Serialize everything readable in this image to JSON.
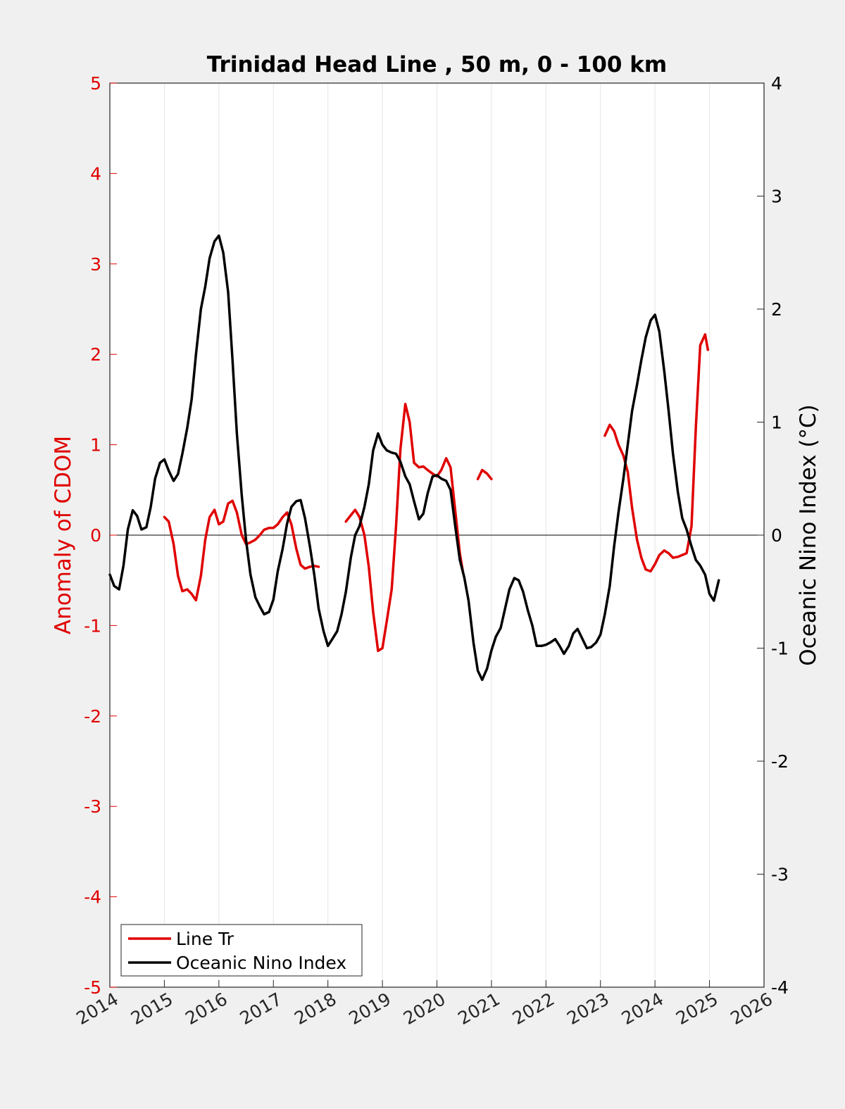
{
  "chart_data": {
    "type": "line",
    "title": "Trinidad Head Line , 50 m, 0 - 100 km",
    "xlabel": "",
    "ylabel": "Anomaly of CDOM",
    "y2label": "Oceanic Nino Index (°C)",
    "xlim": [
      2014,
      2026
    ],
    "ylim": [
      -5,
      5
    ],
    "y2lim": [
      -4,
      4
    ],
    "x_ticks": [
      "2014",
      "2015",
      "2016",
      "2017",
      "2018",
      "2019",
      "2020",
      "2021",
      "2022",
      "2023",
      "2024",
      "2025",
      "2026"
    ],
    "y_ticks": [
      "5",
      "4",
      "3",
      "2",
      "1",
      "0",
      "-1",
      "-2",
      "-3",
      "-4",
      "-5"
    ],
    "y2_ticks": [
      "4",
      "3",
      "2",
      "1",
      "0",
      "-1",
      "-2",
      "-3",
      "-4"
    ],
    "grid": "vertical",
    "legend_position": "bottom-left",
    "colors": {
      "cdom": "#e00000",
      "oni": "#000000",
      "background": "#f0f0f0",
      "plot": "#ffffff"
    },
    "series": [
      {
        "name": "Line Tr",
        "axis": "left",
        "color": "#e00000",
        "segments": [
          [
            [
              2015.0,
              0.2
            ],
            [
              2015.08,
              0.15
            ],
            [
              2015.17,
              -0.1
            ],
            [
              2015.25,
              -0.45
            ],
            [
              2015.33,
              -0.62
            ],
            [
              2015.42,
              -0.6
            ],
            [
              2015.5,
              -0.65
            ],
            [
              2015.58,
              -0.72
            ],
            [
              2015.67,
              -0.45
            ],
            [
              2015.75,
              -0.05
            ],
            [
              2015.83,
              0.2
            ],
            [
              2015.92,
              0.28
            ],
            [
              2016.0,
              0.12
            ],
            [
              2016.08,
              0.15
            ],
            [
              2016.17,
              0.35
            ],
            [
              2016.25,
              0.38
            ],
            [
              2016.33,
              0.25
            ],
            [
              2016.42,
              0.0
            ],
            [
              2016.5,
              -0.1
            ],
            [
              2016.58,
              -0.08
            ],
            [
              2016.67,
              -0.05
            ],
            [
              2016.75,
              0.0
            ],
            [
              2016.83,
              0.06
            ],
            [
              2016.92,
              0.08
            ],
            [
              2017.0,
              0.08
            ],
            [
              2017.08,
              0.12
            ],
            [
              2017.17,
              0.2
            ],
            [
              2017.25,
              0.25
            ],
            [
              2017.33,
              0.12
            ],
            [
              2017.42,
              -0.15
            ],
            [
              2017.5,
              -0.33
            ],
            [
              2017.58,
              -0.37
            ],
            [
              2017.67,
              -0.35
            ],
            [
              2017.75,
              -0.34
            ],
            [
              2017.83,
              -0.35
            ]
          ],
          [
            [
              2018.33,
              0.15
            ],
            [
              2018.42,
              0.22
            ],
            [
              2018.5,
              0.28
            ],
            [
              2018.58,
              0.2
            ],
            [
              2018.67,
              0.0
            ],
            [
              2018.75,
              -0.35
            ],
            [
              2018.83,
              -0.85
            ],
            [
              2018.92,
              -1.28
            ],
            [
              2019.0,
              -1.25
            ],
            [
              2019.08,
              -0.95
            ],
            [
              2019.17,
              -0.6
            ],
            [
              2019.25,
              0.1
            ],
            [
              2019.33,
              0.95
            ],
            [
              2019.42,
              1.45
            ],
            [
              2019.5,
              1.25
            ],
            [
              2019.58,
              0.8
            ],
            [
              2019.67,
              0.75
            ],
            [
              2019.75,
              0.76
            ],
            [
              2019.83,
              0.72
            ],
            [
              2019.92,
              0.68
            ],
            [
              2020.0,
              0.65
            ],
            [
              2020.08,
              0.72
            ],
            [
              2020.17,
              0.85
            ],
            [
              2020.25,
              0.75
            ],
            [
              2020.33,
              0.3
            ],
            [
              2020.42,
              -0.2
            ],
            [
              2020.48,
              -0.42
            ]
          ],
          [
            [
              2020.75,
              0.62
            ],
            [
              2020.83,
              0.72
            ],
            [
              2020.92,
              0.68
            ],
            [
              2021.0,
              0.62
            ]
          ],
          [
            [
              2023.08,
              1.1
            ],
            [
              2023.17,
              1.22
            ],
            [
              2023.25,
              1.15
            ],
            [
              2023.33,
              1.0
            ],
            [
              2023.42,
              0.88
            ],
            [
              2023.5,
              0.7
            ],
            [
              2023.58,
              0.3
            ],
            [
              2023.67,
              -0.05
            ],
            [
              2023.75,
              -0.25
            ],
            [
              2023.83,
              -0.38
            ],
            [
              2023.92,
              -0.4
            ],
            [
              2024.0,
              -0.32
            ],
            [
              2024.08,
              -0.22
            ],
            [
              2024.17,
              -0.17
            ],
            [
              2024.25,
              -0.2
            ],
            [
              2024.33,
              -0.25
            ],
            [
              2024.42,
              -0.24
            ],
            [
              2024.5,
              -0.22
            ],
            [
              2024.58,
              -0.2
            ],
            [
              2024.67,
              0.1
            ],
            [
              2024.75,
              1.2
            ],
            [
              2024.83,
              2.1
            ],
            [
              2024.92,
              2.22
            ],
            [
              2024.97,
              2.05
            ]
          ]
        ]
      },
      {
        "name": "Oceanic Nino Index",
        "axis": "right",
        "color": "#000000",
        "segments": [
          [
            [
              2014.0,
              -0.35
            ],
            [
              2014.08,
              -0.45
            ],
            [
              2014.17,
              -0.48
            ],
            [
              2014.25,
              -0.27
            ],
            [
              2014.33,
              0.05
            ],
            [
              2014.42,
              0.22
            ],
            [
              2014.5,
              0.17
            ],
            [
              2014.58,
              0.05
            ],
            [
              2014.67,
              0.07
            ],
            [
              2014.75,
              0.25
            ],
            [
              2014.83,
              0.5
            ],
            [
              2014.92,
              0.64
            ],
            [
              2015.0,
              0.67
            ],
            [
              2015.08,
              0.57
            ],
            [
              2015.17,
              0.48
            ],
            [
              2015.25,
              0.54
            ],
            [
              2015.33,
              0.72
            ],
            [
              2015.42,
              0.95
            ],
            [
              2015.5,
              1.2
            ],
            [
              2015.58,
              1.6
            ],
            [
              2015.67,
              2.0
            ],
            [
              2015.75,
              2.2
            ],
            [
              2015.83,
              2.45
            ],
            [
              2015.92,
              2.6
            ],
            [
              2016.0,
              2.65
            ],
            [
              2016.08,
              2.5
            ],
            [
              2016.17,
              2.15
            ],
            [
              2016.25,
              1.55
            ],
            [
              2016.33,
              0.9
            ],
            [
              2016.42,
              0.35
            ],
            [
              2016.5,
              -0.05
            ],
            [
              2016.58,
              -0.35
            ],
            [
              2016.67,
              -0.55
            ],
            [
              2016.75,
              -0.63
            ],
            [
              2016.83,
              -0.7
            ],
            [
              2016.92,
              -0.68
            ],
            [
              2017.0,
              -0.57
            ],
            [
              2017.08,
              -0.32
            ],
            [
              2017.17,
              -0.12
            ],
            [
              2017.25,
              0.1
            ],
            [
              2017.33,
              0.25
            ],
            [
              2017.42,
              0.3
            ],
            [
              2017.5,
              0.31
            ],
            [
              2017.58,
              0.15
            ],
            [
              2017.67,
              -0.1
            ],
            [
              2017.75,
              -0.35
            ],
            [
              2017.83,
              -0.65
            ],
            [
              2017.92,
              -0.85
            ],
            [
              2018.0,
              -0.98
            ],
            [
              2018.08,
              -0.92
            ],
            [
              2018.17,
              -0.85
            ],
            [
              2018.25,
              -0.7
            ],
            [
              2018.33,
              -0.5
            ],
            [
              2018.42,
              -0.2
            ],
            [
              2018.5,
              0.0
            ],
            [
              2018.58,
              0.08
            ],
            [
              2018.67,
              0.25
            ],
            [
              2018.75,
              0.45
            ],
            [
              2018.83,
              0.75
            ],
            [
              2018.92,
              0.9
            ],
            [
              2019.0,
              0.8
            ],
            [
              2019.08,
              0.75
            ],
            [
              2019.17,
              0.73
            ],
            [
              2019.25,
              0.72
            ],
            [
              2019.33,
              0.65
            ],
            [
              2019.42,
              0.52
            ],
            [
              2019.5,
              0.45
            ],
            [
              2019.58,
              0.3
            ],
            [
              2019.67,
              0.14
            ],
            [
              2019.75,
              0.19
            ],
            [
              2019.83,
              0.37
            ],
            [
              2019.92,
              0.52
            ],
            [
              2020.0,
              0.53
            ],
            [
              2020.08,
              0.5
            ],
            [
              2020.17,
              0.48
            ],
            [
              2020.25,
              0.4
            ],
            [
              2020.33,
              0.1
            ],
            [
              2020.42,
              -0.22
            ],
            [
              2020.5,
              -0.37
            ],
            [
              2020.58,
              -0.58
            ],
            [
              2020.67,
              -0.95
            ],
            [
              2020.75,
              -1.2
            ],
            [
              2020.83,
              -1.28
            ],
            [
              2020.92,
              -1.18
            ],
            [
              2021.0,
              -1.02
            ],
            [
              2021.08,
              -0.9
            ],
            [
              2021.17,
              -0.82
            ],
            [
              2021.25,
              -0.65
            ],
            [
              2021.33,
              -0.48
            ],
            [
              2021.42,
              -0.38
            ],
            [
              2021.5,
              -0.4
            ],
            [
              2021.58,
              -0.5
            ],
            [
              2021.67,
              -0.67
            ],
            [
              2021.75,
              -0.8
            ],
            [
              2021.83,
              -0.98
            ],
            [
              2021.92,
              -0.98
            ],
            [
              2022.0,
              -0.97
            ],
            [
              2022.08,
              -0.95
            ],
            [
              2022.17,
              -0.92
            ],
            [
              2022.25,
              -0.98
            ],
            [
              2022.33,
              -1.05
            ],
            [
              2022.42,
              -0.98
            ],
            [
              2022.5,
              -0.87
            ],
            [
              2022.58,
              -0.83
            ],
            [
              2022.67,
              -0.92
            ],
            [
              2022.75,
              -1.0
            ],
            [
              2022.83,
              -0.99
            ],
            [
              2022.92,
              -0.95
            ],
            [
              2023.0,
              -0.88
            ],
            [
              2023.08,
              -0.7
            ],
            [
              2023.17,
              -0.45
            ],
            [
              2023.25,
              -0.1
            ],
            [
              2023.33,
              0.2
            ],
            [
              2023.42,
              0.5
            ],
            [
              2023.5,
              0.8
            ],
            [
              2023.58,
              1.1
            ],
            [
              2023.67,
              1.33
            ],
            [
              2023.75,
              1.55
            ],
            [
              2023.83,
              1.75
            ],
            [
              2023.92,
              1.9
            ],
            [
              2024.0,
              1.95
            ],
            [
              2024.08,
              1.8
            ],
            [
              2024.17,
              1.45
            ],
            [
              2024.25,
              1.1
            ],
            [
              2024.33,
              0.72
            ],
            [
              2024.42,
              0.38
            ],
            [
              2024.5,
              0.15
            ],
            [
              2024.58,
              0.05
            ],
            [
              2024.67,
              -0.1
            ],
            [
              2024.75,
              -0.22
            ],
            [
              2024.83,
              -0.27
            ],
            [
              2024.92,
              -0.35
            ],
            [
              2025.0,
              -0.52
            ],
            [
              2025.08,
              -0.58
            ],
            [
              2025.17,
              -0.4
            ]
          ]
        ]
      }
    ]
  }
}
